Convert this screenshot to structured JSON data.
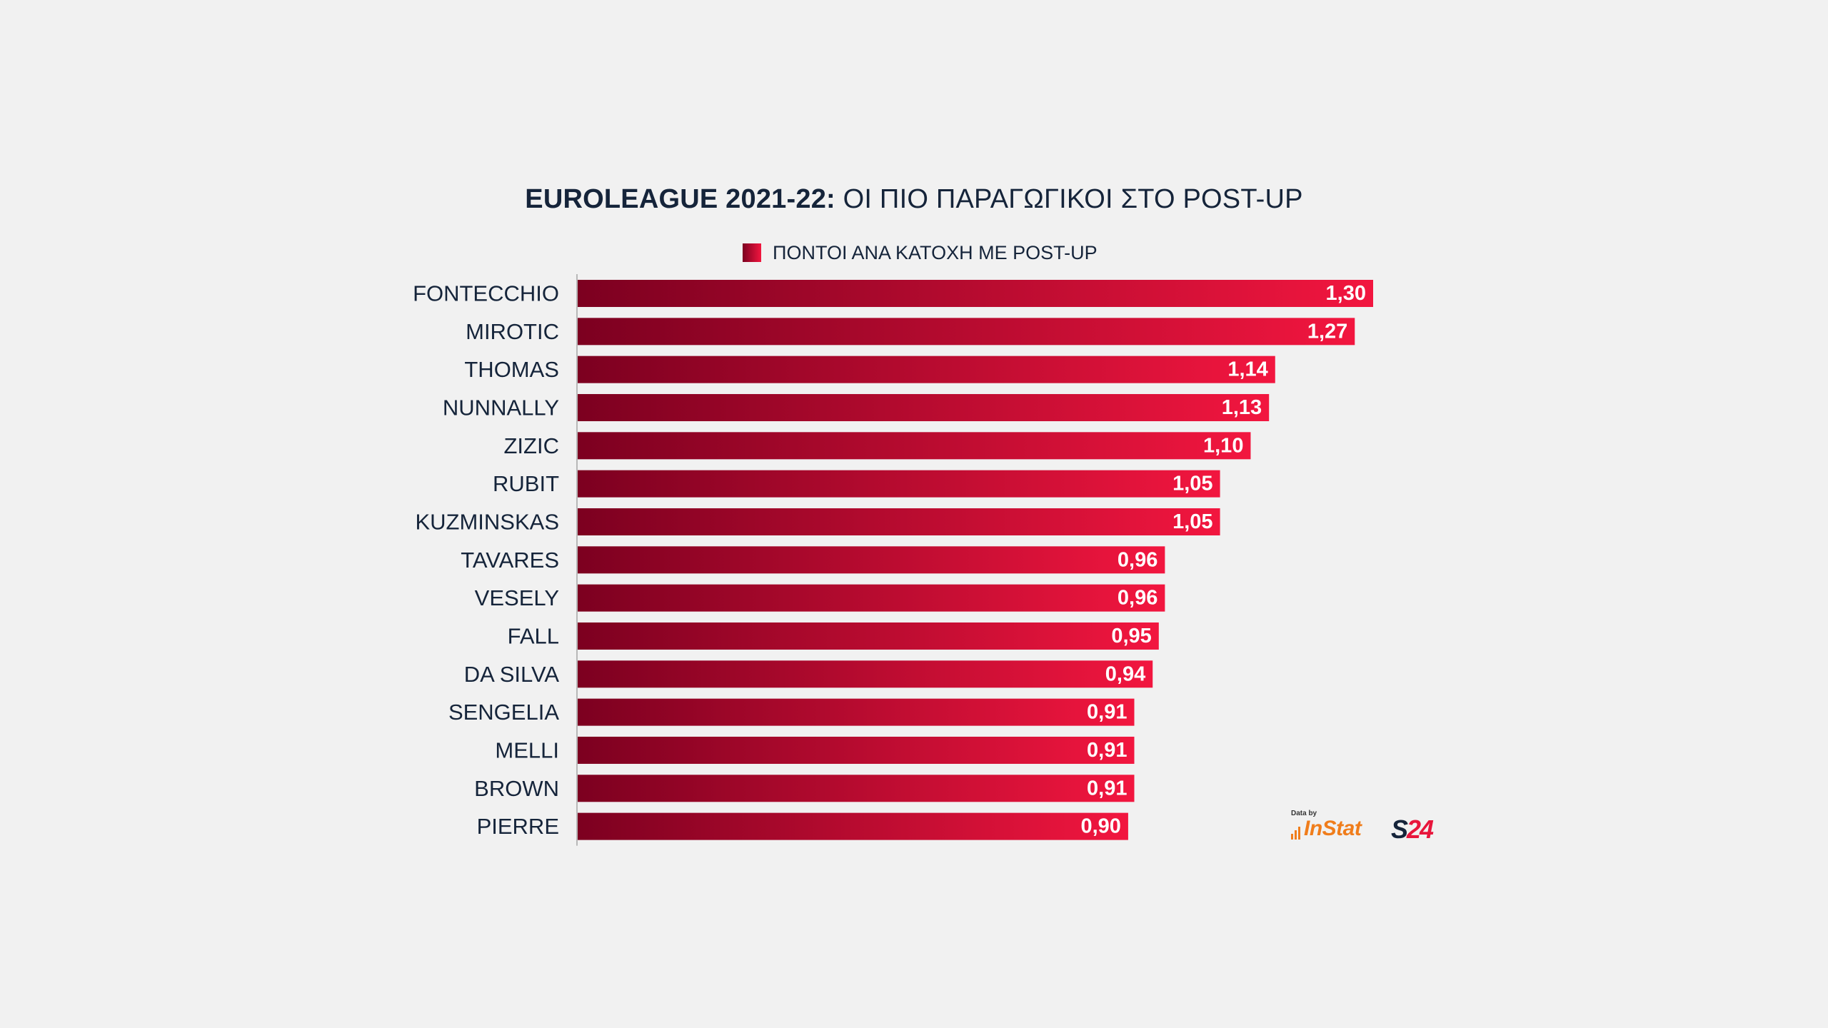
{
  "title": {
    "bold": "EUROLEAGUE 2021-22:",
    "rest": " ΟΙ ΠΙΟ ΠΑΡΑΓΩΓΙΚΟΙ ΣΤΟ POST-UP"
  },
  "legend": {
    "label": "ΠΟΝΤΟΙ ΑΝΑ ΚΑΤΟΧΗ ΜΕ POST-UP"
  },
  "credit": {
    "data_by": "Data by",
    "instat": "InStat",
    "s24_s": "S",
    "s24_n": "24"
  },
  "colors": {
    "bar_start": "#7c0020",
    "bar_end": "#f2163f",
    "text_dark": "#15243a",
    "background": "#f1f1f1"
  },
  "chart_data": {
    "type": "bar",
    "orientation": "horizontal",
    "title": "EUROLEAGUE 2021-22: ΟΙ ΠΙΟ ΠΑΡΑΓΩΓΙΚΟΙ ΣΤΟ POST-UP",
    "legend": "ΠΟΝΤΟΙ ΑΝΑ ΚΑΤΟΧΗ ΜΕ POST-UP",
    "legend_position": "top",
    "grid": false,
    "xlim": [
      0,
      1.4
    ],
    "categories": [
      "FONTECCHIO",
      "MIROTIC",
      "THOMAS",
      "NUNNALLY",
      "ZIZIC",
      "RUBIT",
      "KUZMINSKAS",
      "TAVARES",
      "VESELY",
      "FALL",
      "DA SILVA",
      "SENGELIA",
      "MELLI",
      "BROWN",
      "PIERRE"
    ],
    "values": [
      1.3,
      1.27,
      1.14,
      1.13,
      1.1,
      1.05,
      1.05,
      0.96,
      0.96,
      0.95,
      0.94,
      0.91,
      0.91,
      0.91,
      0.9
    ],
    "value_labels": [
      "1,30",
      "1,27",
      "1,14",
      "1,13",
      "1,10",
      "1,05",
      "1,05",
      "0,96",
      "0,96",
      "0,95",
      "0,94",
      "0,91",
      "0,91",
      "0,91",
      "0,90"
    ]
  }
}
